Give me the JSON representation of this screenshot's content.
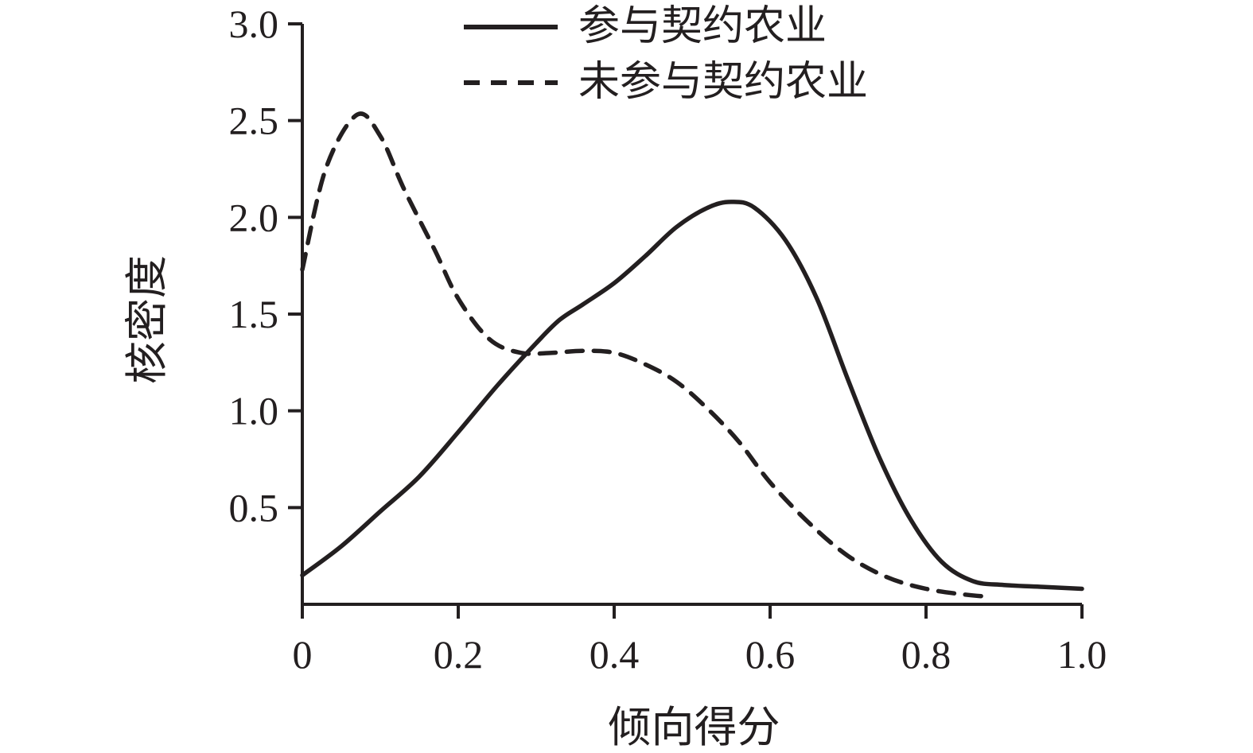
{
  "colors": {
    "line": "#231f20",
    "background": "#ffffff"
  },
  "chart_data": {
    "type": "line",
    "title": "",
    "xlabel": "倾向得分",
    "ylabel": "核密度",
    "xlim": [
      0,
      1
    ],
    "ylim": [
      0,
      3
    ],
    "grid": false,
    "legend_position": "top-inside",
    "x_ticks": [
      0,
      0.2,
      0.4,
      0.6,
      0.8,
      1.0
    ],
    "x_tick_labels": [
      "0",
      "0.2",
      "0.4",
      "0.6",
      "0.8",
      "1.0"
    ],
    "y_ticks": [
      0.5,
      1.0,
      1.5,
      2.0,
      2.5,
      3.0
    ],
    "y_tick_labels": [
      "0.5",
      "1.0",
      "1.5",
      "2.0",
      "2.5",
      "3.0"
    ],
    "series": [
      {
        "name": "参与契约农业",
        "style": "solid",
        "color": "#231f20",
        "x": [
          0,
          0.05,
          0.1,
          0.15,
          0.2,
          0.25,
          0.3,
          0.33,
          0.36,
          0.4,
          0.44,
          0.48,
          0.52,
          0.55,
          0.58,
          0.62,
          0.66,
          0.7,
          0.74,
          0.78,
          0.82,
          0.86,
          0.9,
          0.95,
          1.0
        ],
        "y": [
          0.15,
          0.3,
          0.48,
          0.66,
          0.89,
          1.13,
          1.35,
          1.47,
          1.55,
          1.66,
          1.8,
          1.95,
          2.05,
          2.08,
          2.05,
          1.88,
          1.58,
          1.16,
          0.76,
          0.44,
          0.22,
          0.12,
          0.1,
          0.09,
          0.08
        ]
      },
      {
        "name": "未参与契约农业",
        "style": "dashed",
        "color": "#231f20",
        "x": [
          0,
          0.03,
          0.07,
          0.1,
          0.13,
          0.17,
          0.2,
          0.24,
          0.28,
          0.32,
          0.36,
          0.4,
          0.44,
          0.48,
          0.52,
          0.56,
          0.6,
          0.65,
          0.7,
          0.75,
          0.8,
          0.85,
          0.88
        ],
        "y": [
          1.73,
          2.25,
          2.53,
          2.42,
          2.15,
          1.83,
          1.58,
          1.37,
          1.3,
          1.3,
          1.31,
          1.3,
          1.24,
          1.15,
          1.01,
          0.84,
          0.63,
          0.42,
          0.25,
          0.14,
          0.08,
          0.05,
          0.04
        ]
      }
    ]
  }
}
